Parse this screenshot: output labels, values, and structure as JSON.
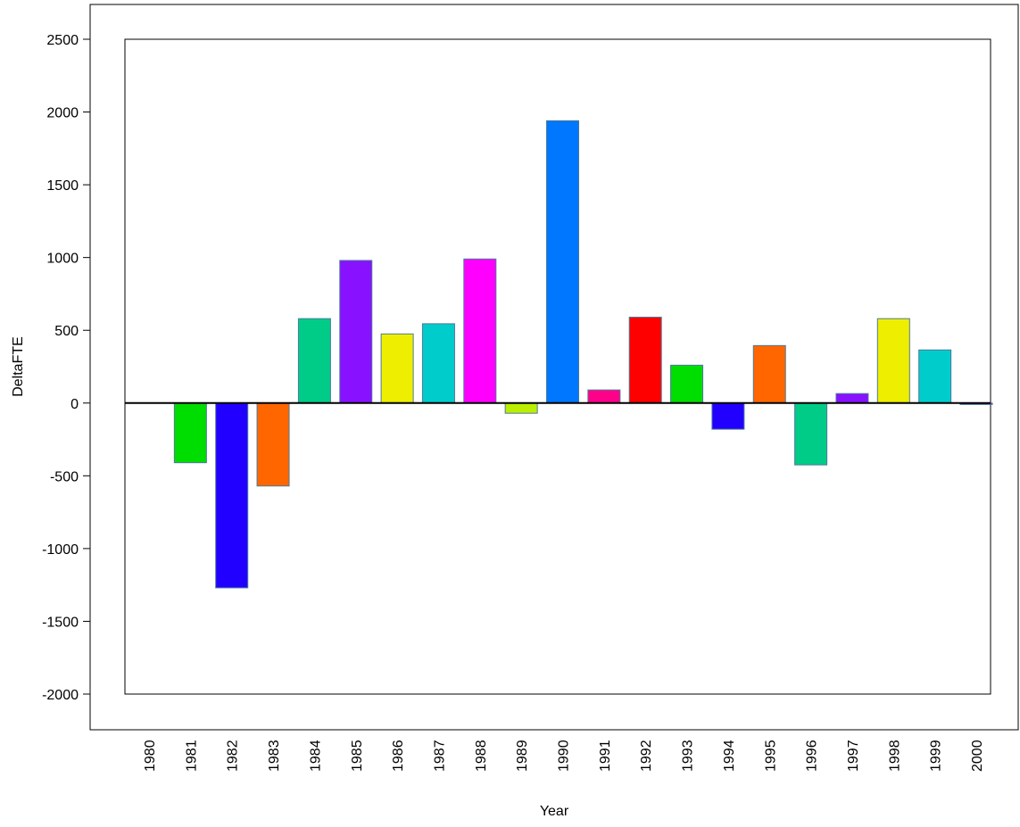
{
  "chart_data": {
    "type": "bar",
    "title": "",
    "xlabel": "Year",
    "ylabel": "DeltaFTE",
    "categories": [
      "1980",
      "1981",
      "1982",
      "1983",
      "1984",
      "1985",
      "1986",
      "1987",
      "1988",
      "1989",
      "1990",
      "1991",
      "1992",
      "1993",
      "1994",
      "1995",
      "1996",
      "1997",
      "1998",
      "1999",
      "2000"
    ],
    "values": [
      0,
      -410,
      -1270,
      -570,
      580,
      980,
      475,
      545,
      990,
      -70,
      1940,
      90,
      590,
      260,
      -180,
      395,
      -425,
      65,
      580,
      365,
      -10
    ],
    "colors": [
      "#ffffff",
      "#00dd00",
      "#2200ff",
      "#ff6600",
      "#00cc88",
      "#8811ff",
      "#eeee00",
      "#00cccc",
      "#ff00ff",
      "#bbee00",
      "#0077ff",
      "#ff0088",
      "#ff0000",
      "#00dd00",
      "#2200ff",
      "#ff6600",
      "#00cc88",
      "#8811ff",
      "#eeee00",
      "#00cccc",
      "#8811ff"
    ],
    "ylim": [
      -2000,
      2500
    ],
    "yticks": [
      "-2000",
      "-1500",
      "-1000",
      "-500",
      "0",
      "500",
      "1000",
      "1500",
      "2000",
      "2500"
    ],
    "grid": false,
    "legend": "none"
  }
}
